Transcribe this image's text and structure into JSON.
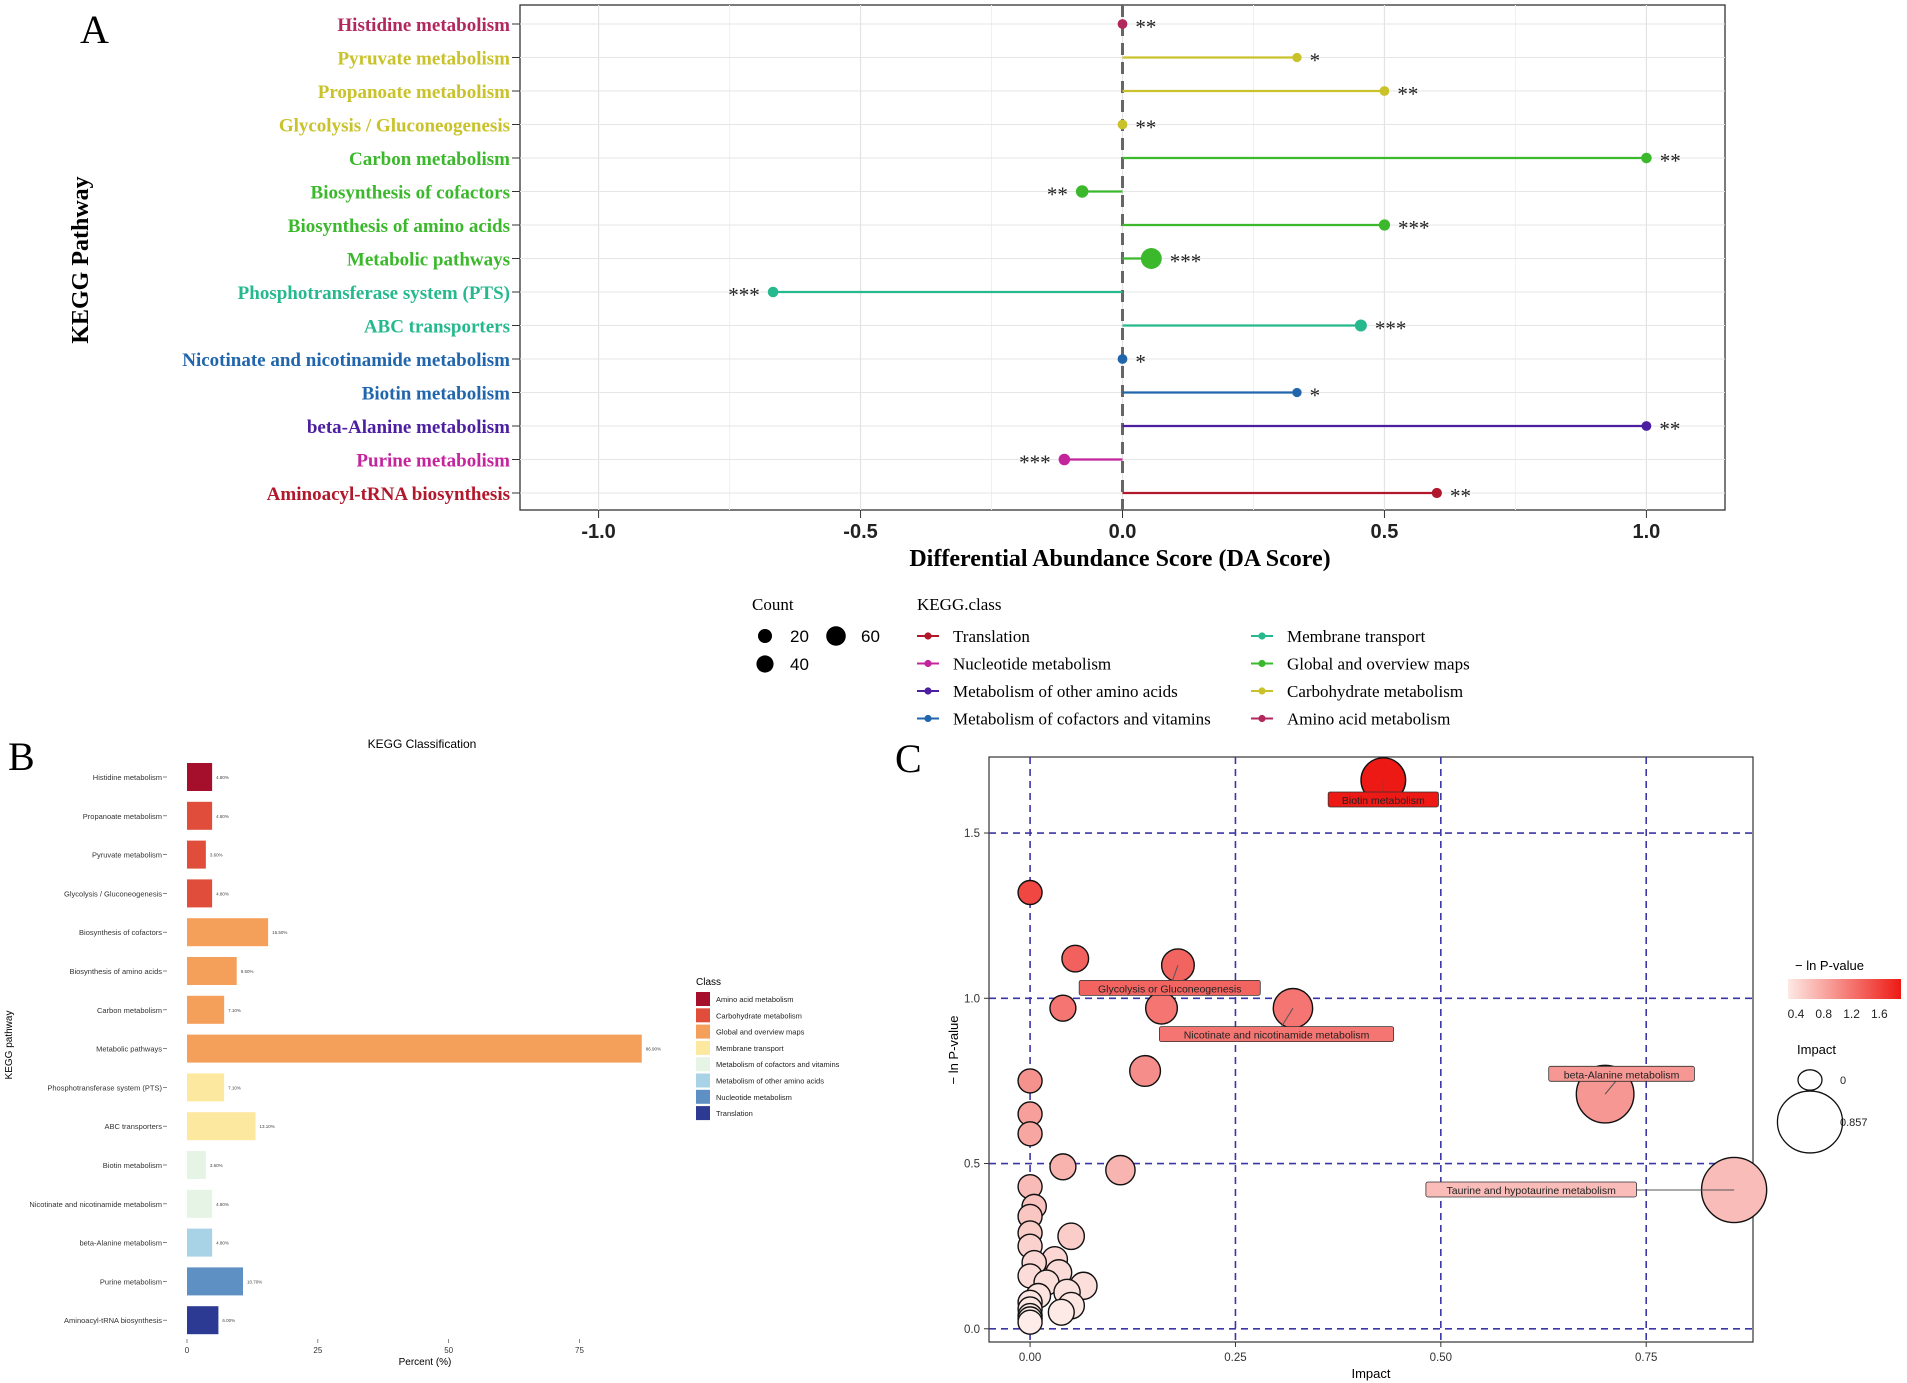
{
  "panels": {
    "a": {
      "letter": "A",
      "title": "",
      "xlabel": "Differential Abundance Score (DA Score)",
      "ylabel": "KEGG Pathway",
      "xlim": [
        -1.15,
        1.15
      ],
      "xticks": [
        "-1.0",
        "-0.5",
        "0.0",
        "0.5",
        "1.0"
      ],
      "xtick_values": [
        -1.0,
        -0.5,
        0.0,
        0.5,
        1.0
      ],
      "count_legend_title": "Count",
      "count_legend": [
        {
          "label": "20",
          "count": 20
        },
        {
          "label": "40",
          "count": 40
        },
        {
          "label": "60",
          "count": 60
        }
      ],
      "class_legend_title": "KEGG.class",
      "class_legend": [
        {
          "label": "Translation",
          "color": "#b2182b"
        },
        {
          "label": "Nucleotide metabolism",
          "color": "#c4249c"
        },
        {
          "label": "Metabolism of other amino acids",
          "color": "#4b1fa0"
        },
        {
          "label": "Metabolism of cofactors and vitamins",
          "color": "#2166ac"
        },
        {
          "label": "Membrane transport",
          "color": "#26b98d"
        },
        {
          "label": "Global and overview maps",
          "color": "#3bb82c"
        },
        {
          "label": "Carbohydrate metabolism",
          "color": "#c9c22a"
        },
        {
          "label": "Amino acid metabolism",
          "color": "#b2275c"
        }
      ]
    },
    "b": {
      "letter": "B",
      "title": "KEGG Classification",
      "xlabel": "Percent (%)",
      "ylabel": "KEGG pathway",
      "xticks": [
        "0",
        "25",
        "50",
        "75"
      ],
      "xtick_values": [
        0,
        25,
        50,
        75
      ],
      "xlim": [
        0,
        90
      ],
      "legend_title": "Class",
      "legend": [
        {
          "label": "Amino acid metabolism",
          "color": "#a50f2c"
        },
        {
          "label": "Carbohydrate metabolism",
          "color": "#e04d3a"
        },
        {
          "label": "Global and overview maps",
          "color": "#f5a05a"
        },
        {
          "label": "Membrane transport",
          "color": "#fde8a0"
        },
        {
          "label": "Metabolism of cofactors and vitamins",
          "color": "#e6f4e6"
        },
        {
          "label": "Metabolism of other amino acids",
          "color": "#a8d3e6"
        },
        {
          "label": "Nucleotide metabolism",
          "color": "#5f90c4"
        },
        {
          "label": "Translation",
          "color": "#2c3a93"
        }
      ]
    },
    "c": {
      "letter": "C",
      "xlabel": "Impact",
      "ylabel": "− ln P-value",
      "xlim": [
        -0.05,
        0.88
      ],
      "ylim": [
        -0.04,
        1.73
      ],
      "xticks": [
        "0.00",
        "0.25",
        "0.50",
        "0.75"
      ],
      "xtick_values": [
        0,
        0.25,
        0.5,
        0.75
      ],
      "yticks": [
        "0.0",
        "0.5",
        "1.0",
        "1.5"
      ],
      "ytick_values": [
        0,
        0.5,
        1.0,
        1.5
      ],
      "color_legend_title": "− ln P-value",
      "color_legend_ticks": [
        "0.4",
        "0.8",
        "1.2",
        "1.6"
      ],
      "size_legend_title": "Impact",
      "size_legend": [
        "0",
        "0.857"
      ],
      "labels": [
        {
          "text": "Biotin metabolism",
          "x": 0.43,
          "y": 1.6
        },
        {
          "text": "Glycolysis or Gluconeogenesis",
          "x": 0.17,
          "y": 1.03
        },
        {
          "text": "Nicotinate and nicotinamide metabolism",
          "x": 0.3,
          "y": 0.89
        },
        {
          "text": "beta-Alanine metabolism",
          "x": 0.72,
          "y": 0.77
        },
        {
          "text": "Taurine and hypotaurine metabolism",
          "x": 0.61,
          "y": 0.42
        }
      ]
    }
  },
  "chart_data": [
    {
      "type": "lollipop",
      "title": "",
      "xlabel": "Differential Abundance Score (DA Score)",
      "ylabel": "KEGG Pathway",
      "xlim": [
        -1.15,
        1.15
      ],
      "series": [
        {
          "pathway": "Histidine metabolism",
          "class": "Amino acid metabolism",
          "value": 0.0,
          "count": 4,
          "sig": "**"
        },
        {
          "pathway": "Pyruvate metabolism",
          "class": "Carbohydrate metabolism",
          "value": 0.333,
          "count": 3,
          "sig": "*"
        },
        {
          "pathway": "Propanoate metabolism",
          "class": "Carbohydrate metabolism",
          "value": 0.5,
          "count": 4,
          "sig": "**"
        },
        {
          "pathway": "Glycolysis / Gluconeogenesis",
          "class": "Carbohydrate metabolism",
          "value": 0.0,
          "count": 4,
          "sig": "**"
        },
        {
          "pathway": "Carbon metabolism",
          "class": "Global and overview maps",
          "value": 1.0,
          "count": 6,
          "sig": "**"
        },
        {
          "pathway": "Biosynthesis of cofactors",
          "class": "Global and overview maps",
          "value": -0.077,
          "count": 13,
          "sig": "**"
        },
        {
          "pathway": "Biosynthesis of amino acids",
          "class": "Global and overview maps",
          "value": 0.5,
          "count": 8,
          "sig": "***"
        },
        {
          "pathway": "Metabolic pathways",
          "class": "Global and overview maps",
          "value": 0.055,
          "count": 73,
          "sig": "***"
        },
        {
          "pathway": "Phosphotransferase system (PTS)",
          "class": "Membrane transport",
          "value": -0.667,
          "count": 6,
          "sig": "***"
        },
        {
          "pathway": "ABC transporters",
          "class": "Membrane transport",
          "value": 0.455,
          "count": 11,
          "sig": "***"
        },
        {
          "pathway": "Nicotinate and nicotinamide metabolism",
          "class": "Metabolism of cofactors and vitamins",
          "value": 0.0,
          "count": 4,
          "sig": "*"
        },
        {
          "pathway": "Biotin metabolism",
          "class": "Metabolism of cofactors and vitamins",
          "value": 0.333,
          "count": 3,
          "sig": "*"
        },
        {
          "pathway": "beta-Alanine metabolism",
          "class": "Metabolism of other amino acids",
          "value": 1.0,
          "count": 4,
          "sig": "**"
        },
        {
          "pathway": "Purine metabolism",
          "class": "Nucleotide metabolism",
          "value": -0.111,
          "count": 9,
          "sig": "***"
        },
        {
          "pathway": "Aminoacyl-tRNA biosynthesis",
          "class": "Translation",
          "value": 0.6,
          "count": 5,
          "sig": "**"
        }
      ]
    },
    {
      "type": "bar",
      "title": "KEGG Classification",
      "xlabel": "Percent (%)",
      "ylabel": "KEGG pathway",
      "categories": [
        "Histidine metabolism",
        "Propanoate metabolism",
        "Pyruvate metabolism",
        "Glycolysis / Gluconeogenesis",
        "Biosynthesis of cofactors",
        "Biosynthesis of amino acids",
        "Carbon metabolism",
        "Metabolic pathways",
        "Phosphotransferase system (PTS)",
        "ABC transporters",
        "Biotin metabolism",
        "Nicotinate and nicotinamide metabolism",
        "beta-Alanine metabolism",
        "Purine metabolism",
        "Aminoacyl-tRNA biosynthesis"
      ],
      "values": [
        4.8,
        4.8,
        3.6,
        4.8,
        15.5,
        9.5,
        7.1,
        86.9,
        7.1,
        13.1,
        3.6,
        4.8,
        4.8,
        10.7,
        6.0
      ],
      "classes": [
        "Amino acid metabolism",
        "Carbohydrate metabolism",
        "Carbohydrate metabolism",
        "Carbohydrate metabolism",
        "Global and overview maps",
        "Global and overview maps",
        "Global and overview maps",
        "Global and overview maps",
        "Membrane transport",
        "Membrane transport",
        "Metabolism of cofactors and vitamins",
        "Metabolism of cofactors and vitamins",
        "Metabolism of other amino acids",
        "Nucleotide metabolism",
        "Translation"
      ],
      "xlim": [
        0,
        90
      ]
    },
    {
      "type": "scatter",
      "xlabel": "Impact",
      "ylabel": "− ln P-value",
      "xlim": [
        -0.05,
        0.88
      ],
      "ylim": [
        -0.04,
        1.73
      ],
      "points": [
        {
          "x": 0.43,
          "y": 1.66,
          "impact": 0.43,
          "name": "Biotin metabolism"
        },
        {
          "x": 0.0,
          "y": 1.32,
          "impact": 0.0
        },
        {
          "x": 0.055,
          "y": 1.12,
          "impact": 0.055
        },
        {
          "x": 0.18,
          "y": 1.1,
          "impact": 0.18,
          "name": "Glycolysis or Gluconeogenesis"
        },
        {
          "x": 0.04,
          "y": 0.97,
          "impact": 0.04
        },
        {
          "x": 0.16,
          "y": 0.97,
          "impact": 0.16
        },
        {
          "x": 0.32,
          "y": 0.97,
          "impact": 0.32,
          "name": "Nicotinate and nicotinamide metabolism"
        },
        {
          "x": 0.14,
          "y": 0.78,
          "impact": 0.14
        },
        {
          "x": 0.0,
          "y": 0.75,
          "impact": 0.0
        },
        {
          "x": 0.7,
          "y": 0.71,
          "impact": 0.7,
          "name": "beta-Alanine metabolism"
        },
        {
          "x": 0.0,
          "y": 0.65,
          "impact": 0.0
        },
        {
          "x": 0.0,
          "y": 0.59,
          "impact": 0.0
        },
        {
          "x": 0.04,
          "y": 0.49,
          "impact": 0.04
        },
        {
          "x": 0.11,
          "y": 0.48,
          "impact": 0.11
        },
        {
          "x": 0.857,
          "y": 0.42,
          "impact": 0.857,
          "name": "Taurine and hypotaurine metabolism"
        },
        {
          "x": 0.0,
          "y": 0.43,
          "impact": 0.0
        },
        {
          "x": 0.005,
          "y": 0.37,
          "impact": 0.005
        },
        {
          "x": 0.0,
          "y": 0.34,
          "impact": 0.0
        },
        {
          "x": 0.0,
          "y": 0.29,
          "impact": 0.0
        },
        {
          "x": 0.05,
          "y": 0.28,
          "impact": 0.05
        },
        {
          "x": 0.0,
          "y": 0.25,
          "impact": 0.0
        },
        {
          "x": 0.03,
          "y": 0.21,
          "impact": 0.03
        },
        {
          "x": 0.005,
          "y": 0.2,
          "impact": 0.005
        },
        {
          "x": 0.035,
          "y": 0.17,
          "impact": 0.035
        },
        {
          "x": 0.0,
          "y": 0.16,
          "impact": 0.0
        },
        {
          "x": 0.02,
          "y": 0.14,
          "impact": 0.02
        },
        {
          "x": 0.065,
          "y": 0.13,
          "impact": 0.065
        },
        {
          "x": 0.045,
          "y": 0.11,
          "impact": 0.045
        },
        {
          "x": 0.01,
          "y": 0.1,
          "impact": 0.01
        },
        {
          "x": 0.0,
          "y": 0.08,
          "impact": 0.0
        },
        {
          "x": 0.0,
          "y": 0.06,
          "impact": 0.0
        },
        {
          "x": 0.05,
          "y": 0.07,
          "impact": 0.05
        },
        {
          "x": 0.038,
          "y": 0.05,
          "impact": 0.038
        },
        {
          "x": 0.0,
          "y": 0.04,
          "impact": 0.0
        },
        {
          "x": 0.0,
          "y": 0.03,
          "impact": 0.0
        },
        {
          "x": 0.0,
          "y": 0.02,
          "impact": 0.0
        }
      ]
    }
  ]
}
